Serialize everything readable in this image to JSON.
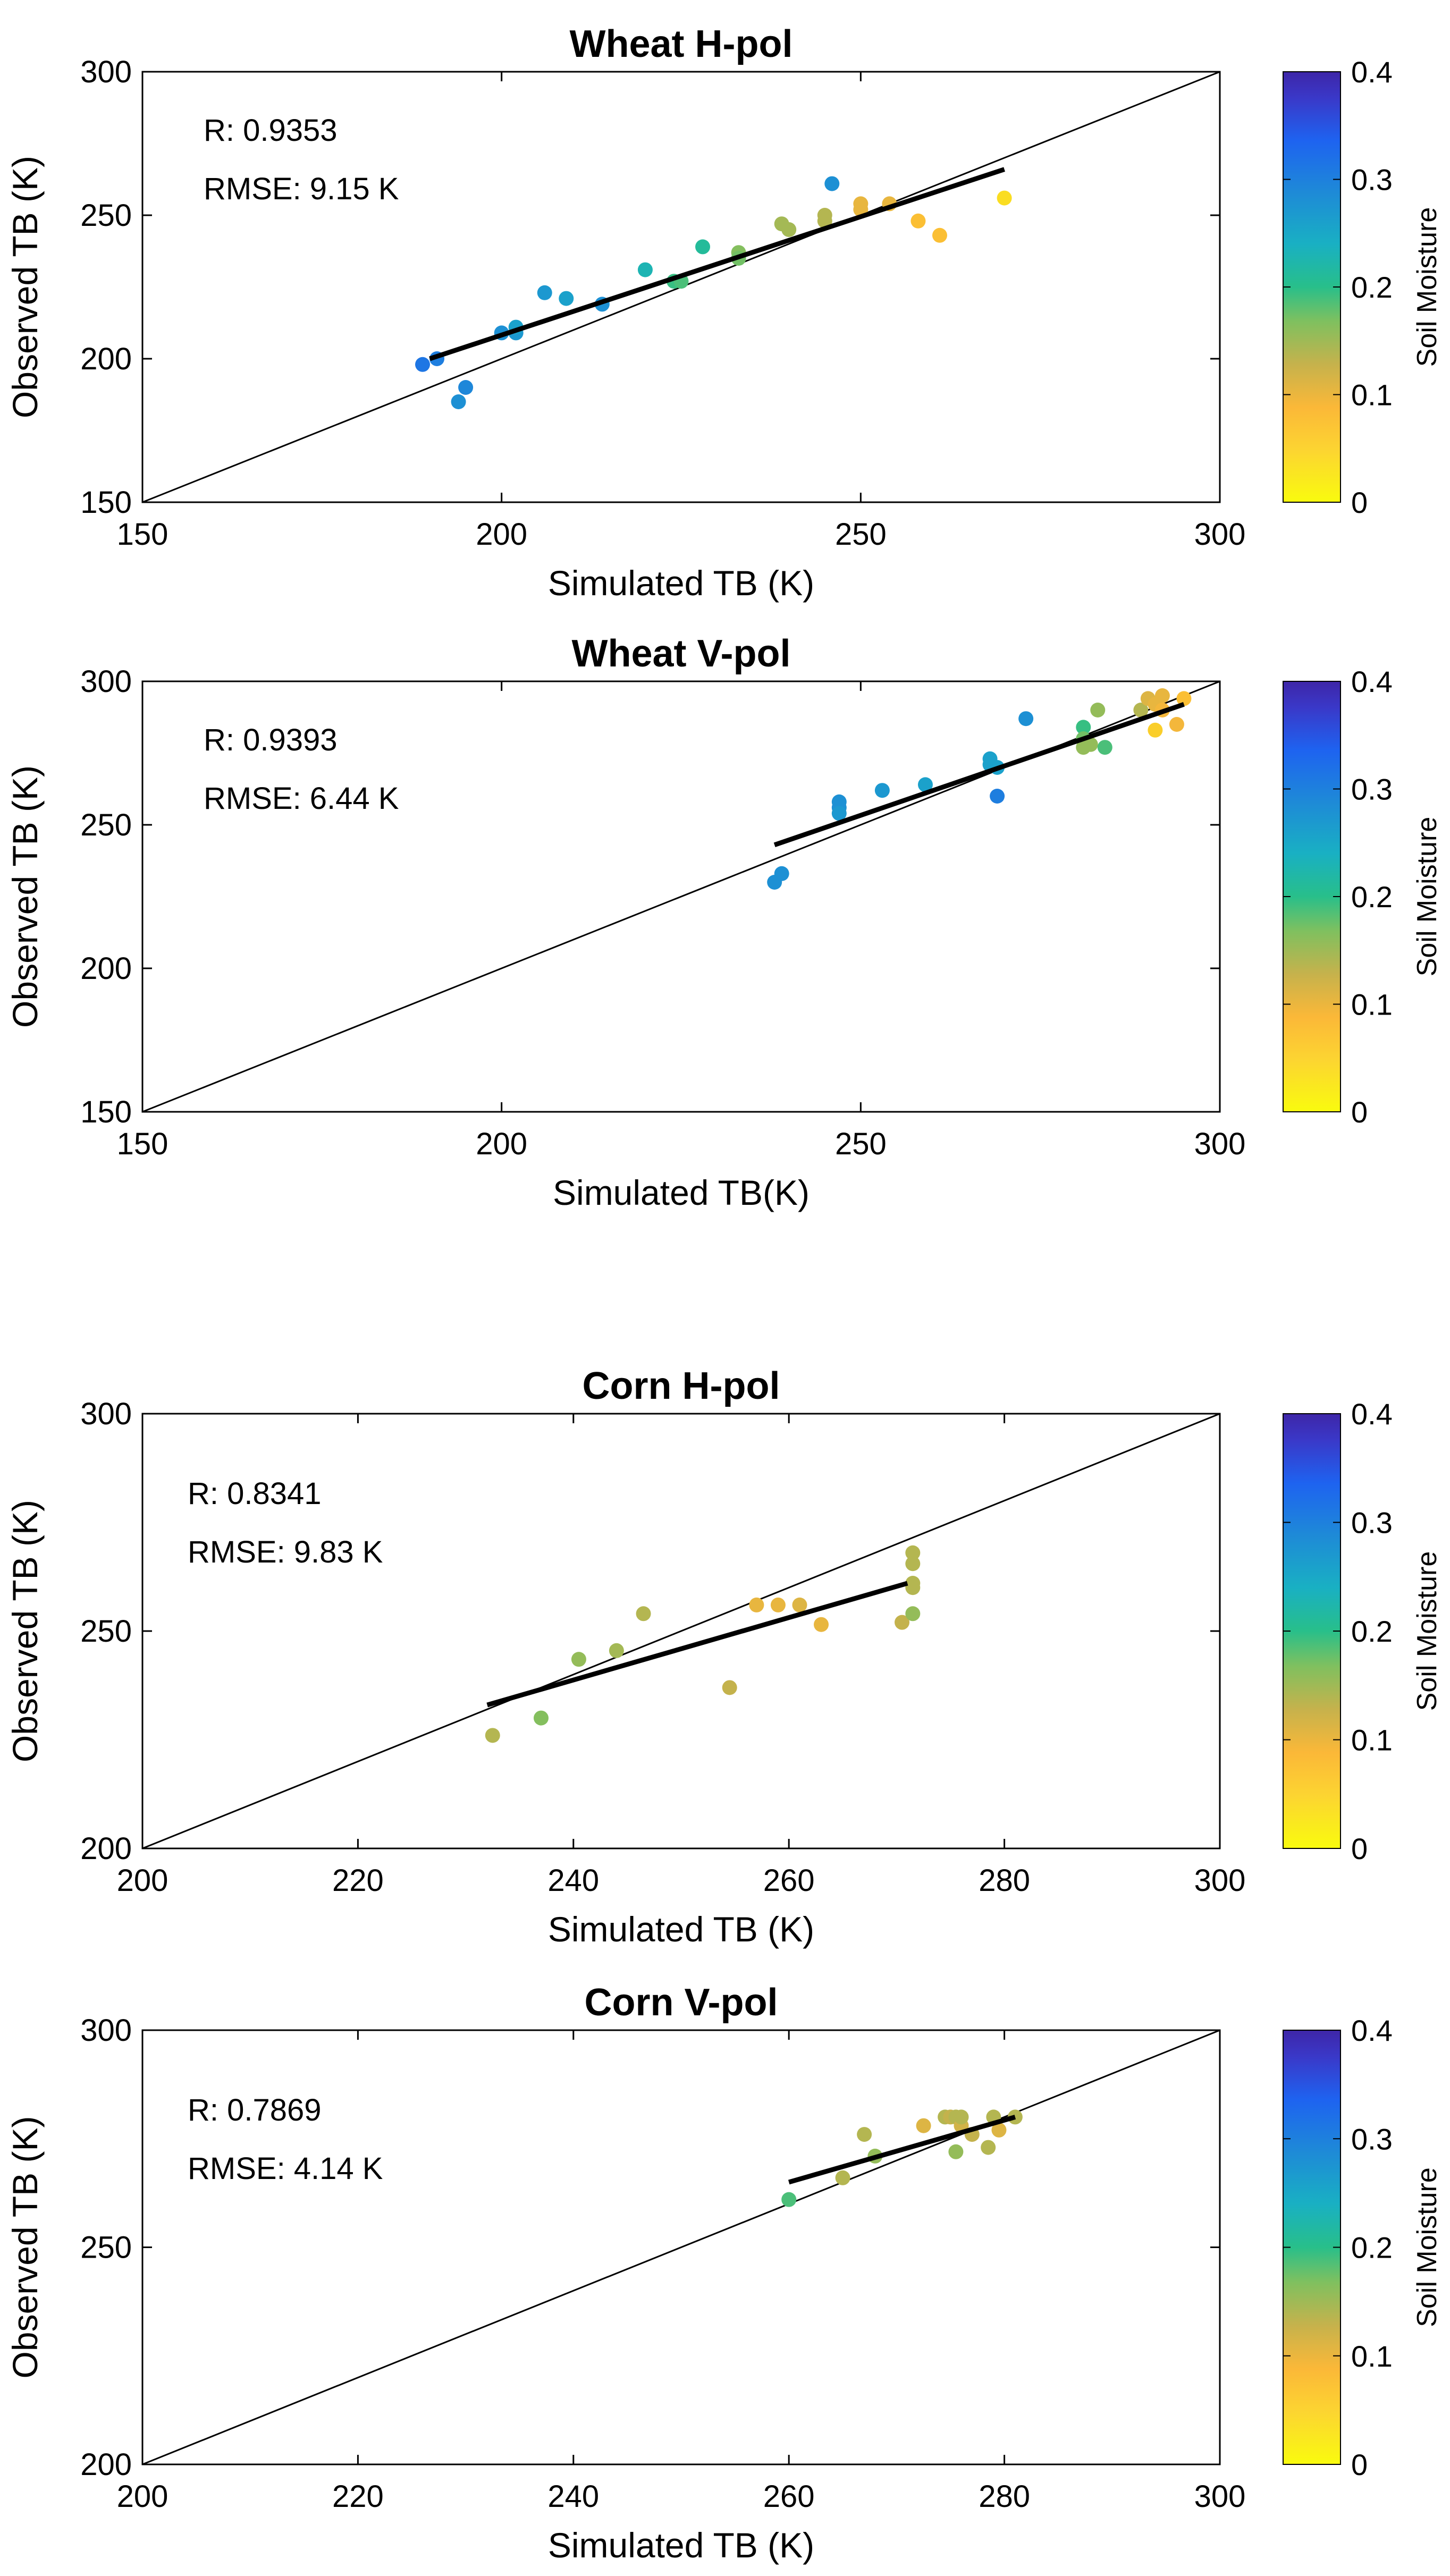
{
  "colors": {
    "axis": "#000000",
    "fit_line": "#000000",
    "one_to_one_line": "#000000",
    "colormap": [
      "#f9fb0e",
      "#fbb838",
      "#c6b24c",
      "#7fc05f",
      "#28bf8a",
      "#19b0c3",
      "#1e8ad7",
      "#1e63f0",
      "#3a38c8",
      "#3e26a8"
    ]
  },
  "chart_data": [
    {
      "type": "scatter",
      "title": "Wheat H-pol",
      "xlabel": "Simulated TB  (K)",
      "ylabel": "Observed TB (K)",
      "xlim": [
        150,
        300
      ],
      "ylim": [
        150,
        300
      ],
      "xticks": [
        150,
        200,
        250,
        300
      ],
      "yticks": [
        150,
        200,
        250,
        300
      ],
      "annotations": [
        "R: 0.9353",
        "RMSE: 9.15 K"
      ],
      "colorbar": {
        "label": "Soil Moisture",
        "range": [
          0,
          0.4
        ],
        "ticks": [
          0,
          0.1,
          0.2,
          0.3,
          0.4
        ]
      },
      "fit_line": {
        "x": [
          190,
          270
        ],
        "y": [
          200,
          266
        ]
      },
      "one_to_one": true,
      "points": [
        {
          "x": 189,
          "y": 198,
          "sm": 0.29
        },
        {
          "x": 191,
          "y": 200,
          "sm": 0.28
        },
        {
          "x": 194,
          "y": 185,
          "sm": 0.26
        },
        {
          "x": 195,
          "y": 190,
          "sm": 0.27
        },
        {
          "x": 200,
          "y": 209,
          "sm": 0.26
        },
        {
          "x": 202,
          "y": 209,
          "sm": 0.25
        },
        {
          "x": 202,
          "y": 211,
          "sm": 0.24
        },
        {
          "x": 206,
          "y": 223,
          "sm": 0.25
        },
        {
          "x": 209,
          "y": 221,
          "sm": 0.24
        },
        {
          "x": 214,
          "y": 219,
          "sm": 0.26
        },
        {
          "x": 220,
          "y": 231,
          "sm": 0.21
        },
        {
          "x": 224,
          "y": 227,
          "sm": 0.17
        },
        {
          "x": 225,
          "y": 227,
          "sm": 0.16
        },
        {
          "x": 228,
          "y": 239,
          "sm": 0.19
        },
        {
          "x": 233,
          "y": 237,
          "sm": 0.13
        },
        {
          "x": 233,
          "y": 235,
          "sm": 0.14
        },
        {
          "x": 239,
          "y": 247,
          "sm": 0.11
        },
        {
          "x": 240,
          "y": 245,
          "sm": 0.11
        },
        {
          "x": 245,
          "y": 250,
          "sm": 0.1
        },
        {
          "x": 245,
          "y": 248,
          "sm": 0.1
        },
        {
          "x": 246,
          "y": 261,
          "sm": 0.26
        },
        {
          "x": 250,
          "y": 254,
          "sm": 0.06
        },
        {
          "x": 250,
          "y": 252,
          "sm": 0.06
        },
        {
          "x": 254,
          "y": 254,
          "sm": 0.06
        },
        {
          "x": 258,
          "y": 248,
          "sm": 0.04
        },
        {
          "x": 261,
          "y": 243,
          "sm": 0.04
        },
        {
          "x": 270,
          "y": 256,
          "sm": 0.02
        }
      ]
    },
    {
      "type": "scatter",
      "title": "Wheat V-pol",
      "xlabel": "Simulated TB(K)",
      "ylabel": "Observed TB (K)",
      "xlim": [
        150,
        300
      ],
      "ylim": [
        150,
        300
      ],
      "xticks": [
        150,
        200,
        250,
        300
      ],
      "yticks": [
        150,
        200,
        250,
        300
      ],
      "annotations": [
        "R: 0.9393",
        "RMSE: 6.44 K"
      ],
      "colorbar": {
        "label": "Soil Moisture",
        "range": [
          0,
          0.4
        ],
        "ticks": [
          0,
          0.1,
          0.2,
          0.3,
          0.4
        ]
      },
      "fit_line": {
        "x": [
          238,
          295
        ],
        "y": [
          243,
          292
        ]
      },
      "one_to_one": true,
      "points": [
        {
          "x": 238,
          "y": 230,
          "sm": 0.26
        },
        {
          "x": 239,
          "y": 233,
          "sm": 0.26
        },
        {
          "x": 247,
          "y": 258,
          "sm": 0.26
        },
        {
          "x": 247,
          "y": 256,
          "sm": 0.26
        },
        {
          "x": 247,
          "y": 254,
          "sm": 0.25
        },
        {
          "x": 253,
          "y": 262,
          "sm": 0.25
        },
        {
          "x": 259,
          "y": 264,
          "sm": 0.24
        },
        {
          "x": 268,
          "y": 273,
          "sm": 0.24
        },
        {
          "x": 268,
          "y": 271,
          "sm": 0.24
        },
        {
          "x": 269,
          "y": 270,
          "sm": 0.24
        },
        {
          "x": 269,
          "y": 260,
          "sm": 0.28
        },
        {
          "x": 273,
          "y": 287,
          "sm": 0.26
        },
        {
          "x": 281,
          "y": 284,
          "sm": 0.17
        },
        {
          "x": 281,
          "y": 280,
          "sm": 0.14
        },
        {
          "x": 281,
          "y": 277,
          "sm": 0.12
        },
        {
          "x": 282,
          "y": 278,
          "sm": 0.12
        },
        {
          "x": 283,
          "y": 290,
          "sm": 0.12
        },
        {
          "x": 284,
          "y": 277,
          "sm": 0.16
        },
        {
          "x": 289,
          "y": 290,
          "sm": 0.1
        },
        {
          "x": 290,
          "y": 294,
          "sm": 0.07
        },
        {
          "x": 291,
          "y": 283,
          "sm": 0.03
        },
        {
          "x": 291,
          "y": 292,
          "sm": 0.06
        },
        {
          "x": 292,
          "y": 295,
          "sm": 0.06
        },
        {
          "x": 292,
          "y": 290,
          "sm": 0.05
        },
        {
          "x": 294,
          "y": 285,
          "sm": 0.05
        },
        {
          "x": 295,
          "y": 294,
          "sm": 0.04
        }
      ]
    },
    {
      "type": "scatter",
      "title": "Corn H-pol",
      "xlabel": "Simulated TB (K)",
      "ylabel": "Observed TB (K)",
      "xlim": [
        200,
        300
      ],
      "ylim": [
        200,
        300
      ],
      "xticks": [
        200,
        220,
        240,
        260,
        280,
        300
      ],
      "yticks": [
        200,
        250,
        300
      ],
      "annotations": [
        "R: 0.8341",
        "RMSE: 9.83 K"
      ],
      "colorbar": {
        "label": "Soil Moisture",
        "range": [
          0,
          0.4
        ],
        "ticks": [
          0,
          0.1,
          0.2,
          0.3,
          0.4
        ]
      },
      "fit_line": {
        "x": [
          232,
          271
        ],
        "y": [
          233,
          261
        ]
      },
      "one_to_one": true,
      "points": [
        {
          "x": 232.5,
          "y": 226,
          "sm": 0.1
        },
        {
          "x": 237,
          "y": 230,
          "sm": 0.13
        },
        {
          "x": 240.5,
          "y": 243.5,
          "sm": 0.12
        },
        {
          "x": 244,
          "y": 245.5,
          "sm": 0.11
        },
        {
          "x": 246.5,
          "y": 254,
          "sm": 0.1
        },
        {
          "x": 254.5,
          "y": 237,
          "sm": 0.09
        },
        {
          "x": 257,
          "y": 256,
          "sm": 0.06
        },
        {
          "x": 259,
          "y": 256,
          "sm": 0.06
        },
        {
          "x": 261,
          "y": 256,
          "sm": 0.07
        },
        {
          "x": 263,
          "y": 251.5,
          "sm": 0.06
        },
        {
          "x": 270.5,
          "y": 252,
          "sm": 0.09
        },
        {
          "x": 271.5,
          "y": 254,
          "sm": 0.12
        },
        {
          "x": 271.5,
          "y": 260,
          "sm": 0.1
        },
        {
          "x": 271.5,
          "y": 261,
          "sm": 0.1
        },
        {
          "x": 271.5,
          "y": 265.5,
          "sm": 0.1
        },
        {
          "x": 271.5,
          "y": 268,
          "sm": 0.1
        }
      ]
    },
    {
      "type": "scatter",
      "title": "Corn V-pol",
      "xlabel": "Simulated TB (K)",
      "ylabel": "Observed TB (K)",
      "xlim": [
        200,
        300
      ],
      "ylim": [
        200,
        300
      ],
      "xticks": [
        200,
        220,
        240,
        260,
        280,
        300
      ],
      "yticks": [
        200,
        250,
        300
      ],
      "annotations": [
        "R: 0.7869",
        "RMSE: 4.14 K"
      ],
      "colorbar": {
        "label": "Soil Moisture",
        "range": [
          0,
          0.4
        ],
        "ticks": [
          0,
          0.1,
          0.2,
          0.3,
          0.4
        ]
      },
      "fit_line": {
        "x": [
          260,
          281
        ],
        "y": [
          265,
          280
        ]
      },
      "one_to_one": true,
      "points": [
        {
          "x": 260,
          "y": 261,
          "sm": 0.16
        },
        {
          "x": 265,
          "y": 266,
          "sm": 0.1
        },
        {
          "x": 267,
          "y": 276,
          "sm": 0.1
        },
        {
          "x": 268,
          "y": 271,
          "sm": 0.12
        },
        {
          "x": 272.5,
          "y": 278,
          "sm": 0.07
        },
        {
          "x": 274.5,
          "y": 280,
          "sm": 0.1
        },
        {
          "x": 275,
          "y": 280,
          "sm": 0.09
        },
        {
          "x": 275.5,
          "y": 280,
          "sm": 0.1
        },
        {
          "x": 276,
          "y": 278,
          "sm": 0.08
        },
        {
          "x": 276,
          "y": 280,
          "sm": 0.1
        },
        {
          "x": 275.5,
          "y": 272,
          "sm": 0.12
        },
        {
          "x": 277,
          "y": 276,
          "sm": 0.09
        },
        {
          "x": 278.5,
          "y": 273,
          "sm": 0.1
        },
        {
          "x": 279,
          "y": 280,
          "sm": 0.1
        },
        {
          "x": 279.5,
          "y": 277,
          "sm": 0.07
        },
        {
          "x": 281,
          "y": 280,
          "sm": 0.1
        }
      ]
    }
  ]
}
